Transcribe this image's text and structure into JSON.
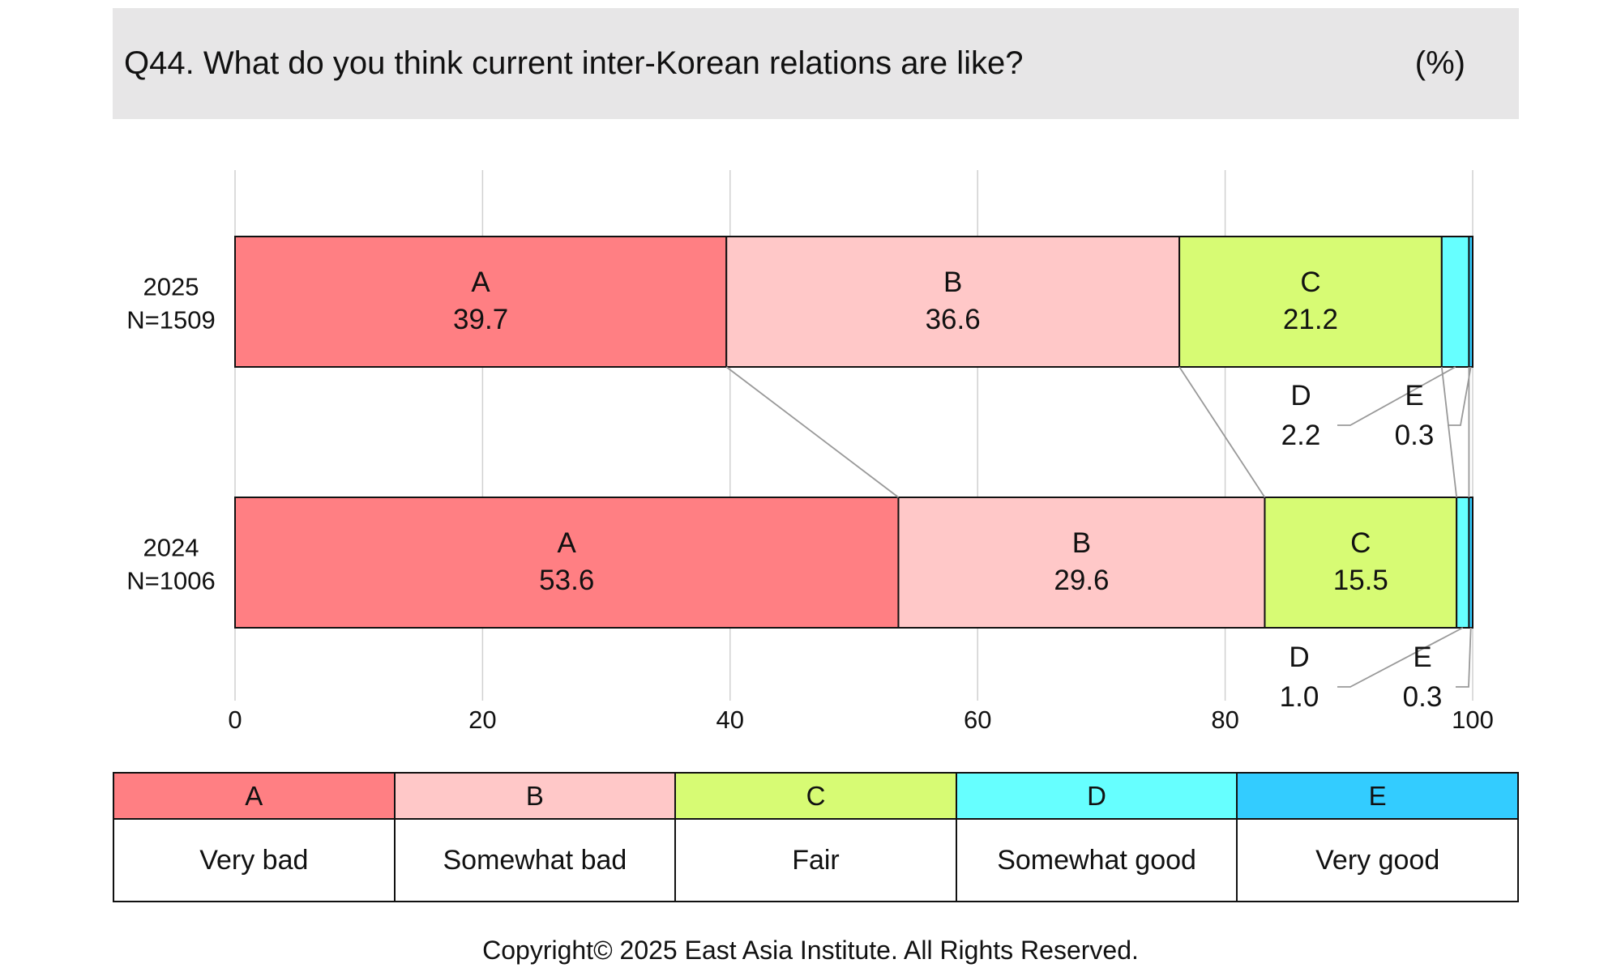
{
  "header": {
    "question": "Q44. What do you think current inter-Korean relations are like?",
    "unit": "(%)"
  },
  "chart_data": {
    "type": "bar",
    "orientation": "horizontal-stacked",
    "title": "Q44. What do you think current inter-Korean relations are like?",
    "unit": "(%)",
    "categories": [
      {
        "year": "2025",
        "n": "N=1509"
      },
      {
        "year": "2024",
        "n": "N=1006"
      }
    ],
    "series": [
      {
        "key": "A",
        "name": "Very bad",
        "color": "#ff7f83",
        "values": [
          39.7,
          53.6
        ]
      },
      {
        "key": "B",
        "name": "Somewhat bad",
        "color": "#ffc8c8",
        "values": [
          36.6,
          29.6
        ]
      },
      {
        "key": "C",
        "name": "Fair",
        "color": "#d7fb74",
        "values": [
          21.2,
          15.5
        ]
      },
      {
        "key": "D",
        "name": "Somewhat good",
        "color": "#66ffff",
        "values": [
          2.2,
          1.0
        ]
      },
      {
        "key": "E",
        "name": "Very good",
        "color": "#33ccff",
        "values": [
          0.3,
          0.3
        ]
      }
    ],
    "value_labels": [
      [
        "39.7",
        "36.6",
        "21.2",
        "2.2",
        "0.3"
      ],
      [
        "53.6",
        "29.6",
        "15.5",
        "1.0",
        "0.3"
      ]
    ],
    "xlim": [
      0,
      100
    ],
    "xticks": [
      "0",
      "20",
      "40",
      "60",
      "80",
      "100"
    ],
    "grid": true,
    "legend_position": "bottom-table"
  },
  "copyright": "Copyright© 2025 East Asia Institute. All Rights Reserved."
}
